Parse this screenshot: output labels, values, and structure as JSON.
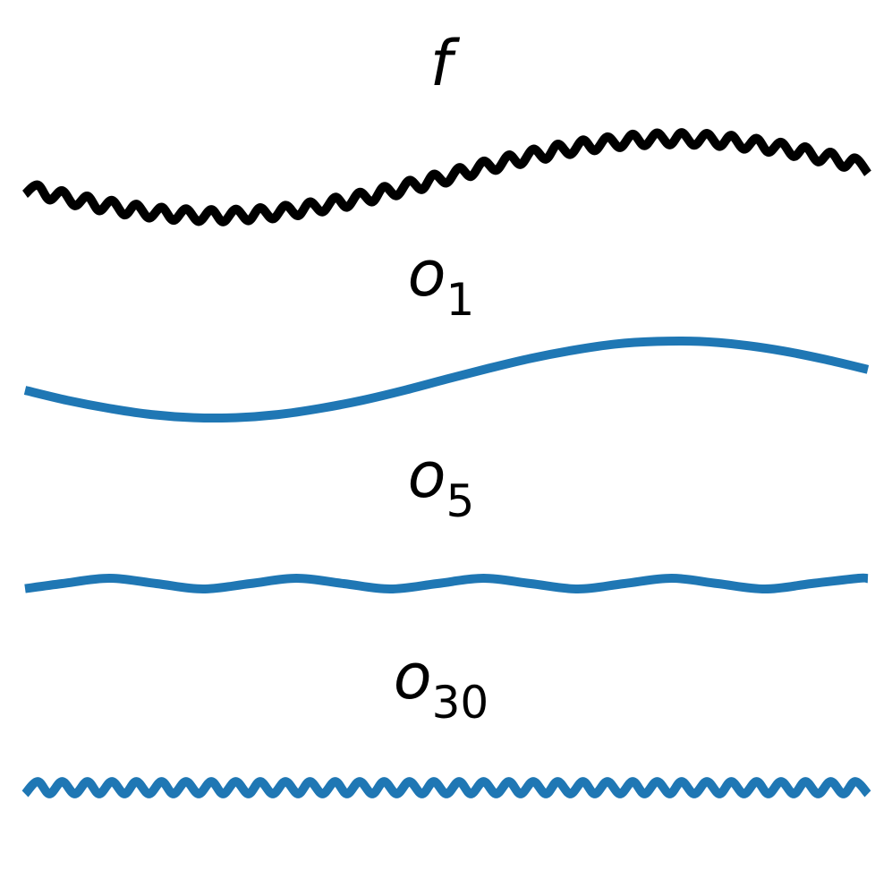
{
  "chart_data": [
    {
      "type": "line",
      "title": "f",
      "x": [
        0,
        0.015,
        0.029,
        0.044,
        0.059,
        0.074,
        0.088,
        0.103,
        0.118,
        0.132,
        0.147,
        0.162,
        0.176,
        0.191,
        0.206,
        0.221,
        0.235,
        0.25,
        0.265,
        0.279,
        0.294,
        0.309,
        0.324,
        0.338,
        0.353,
        0.368,
        0.382,
        0.397,
        0.412,
        0.426,
        0.441,
        0.456,
        0.471,
        0.485,
        0.5,
        0.515,
        0.529,
        0.544,
        0.559,
        0.574,
        0.588,
        0.603,
        0.618,
        0.632,
        0.647,
        0.662,
        0.676,
        0.691,
        0.706,
        0.721,
        0.735,
        0.75,
        0.765,
        0.779,
        0.794,
        0.809,
        0.824,
        0.838,
        0.853,
        0.868,
        0.882,
        0.897,
        0.912,
        0.926,
        0.941,
        0.956,
        0.971,
        0.985,
        1
      ],
      "series": [
        {
          "color": "#000000",
          "values": [
            -0.44,
            -0.2,
            -0.59,
            -0.35,
            -0.74,
            -0.49,
            -0.87,
            -0.6,
            -0.98,
            -0.7,
            -1.06,
            -0.78,
            -1.12,
            -0.82,
            -1.15,
            -0.84,
            -1.16,
            -0.83,
            -1.13,
            -0.79,
            -1.08,
            -0.73,
            -1.0,
            -0.64,
            -0.9,
            -0.52,
            -0.78,
            -0.39,
            -0.64,
            -0.24,
            -0.48,
            -0.08,
            -0.32,
            0.08,
            -0.15,
            0.25,
            0.02,
            0.42,
            0.18,
            0.58,
            0.33,
            0.73,
            0.47,
            0.86,
            0.59,
            0.97,
            0.69,
            1.05,
            0.77,
            1.12,
            0.82,
            1.15,
            0.84,
            1.16,
            0.83,
            1.14,
            0.8,
            1.09,
            0.73,
            1.01,
            0.65,
            0.91,
            0.54,
            0.79,
            0.4,
            0.65,
            0.26,
            0.5,
            0.1
          ]
        }
      ],
      "xlim": [
        0,
        1
      ],
      "ylim": [
        -1.5,
        1.5
      ]
    },
    {
      "type": "line",
      "title": "o",
      "subscript": "1",
      "x": [
        0,
        0.05,
        0.1,
        0.15,
        0.2,
        0.25,
        0.3,
        0.35,
        0.4,
        0.45,
        0.5,
        0.55,
        0.6,
        0.65,
        0.7,
        0.75,
        0.8,
        0.85,
        0.9,
        0.95,
        1
      ],
      "series": [
        {
          "color": "#1f77b4",
          "values": [
            -0.28,
            -0.54,
            -0.75,
            -0.91,
            -0.99,
            -0.99,
            -0.91,
            -0.75,
            -0.54,
            -0.28,
            0.01,
            0.29,
            0.55,
            0.76,
            0.92,
            0.99,
            0.99,
            0.9,
            0.74,
            0.52,
            0.26
          ]
        }
      ],
      "xlim": [
        0,
        1
      ],
      "ylim": [
        -1.5,
        1.5
      ]
    },
    {
      "type": "line",
      "title": "o",
      "subscript": "5",
      "x": [
        0,
        0.044,
        0.1,
        0.156,
        0.211,
        0.267,
        0.322,
        0.378,
        0.433,
        0.489,
        0.544,
        0.6,
        0.656,
        0.711,
        0.767,
        0.822,
        0.878,
        0.933,
        0.989,
        1
      ],
      "series": [
        {
          "color": "#1f77b4",
          "values": [
            -0.13,
            0,
            0.14,
            0,
            -0.14,
            0,
            0.14,
            0,
            -0.14,
            0,
            0.14,
            0,
            -0.14,
            0,
            0.14,
            0,
            -0.14,
            0,
            0.14,
            0.13
          ]
        }
      ],
      "xlim": [
        0,
        1
      ],
      "ylim": [
        -1.5,
        1.5
      ]
    },
    {
      "type": "line",
      "title": "o",
      "subscript": "30",
      "x": [
        0,
        0.015,
        0.029,
        0.044,
        0.059,
        0.074,
        0.088,
        0.103,
        0.118,
        0.132,
        0.147,
        0.162,
        0.176,
        0.191,
        0.206,
        0.221,
        0.235,
        0.25,
        0.265,
        0.279,
        0.294,
        0.309,
        0.324,
        0.338,
        0.353,
        0.368,
        0.382,
        0.397,
        0.412,
        0.426,
        0.441,
        0.456,
        0.471,
        0.485,
        0.5,
        0.515,
        0.529,
        0.544,
        0.559,
        0.574,
        0.588,
        0.603,
        0.618,
        0.632,
        0.647,
        0.662,
        0.676,
        0.691,
        0.706,
        0.721,
        0.735,
        0.75,
        0.765,
        0.779,
        0.794,
        0.809,
        0.824,
        0.838,
        0.853,
        0.868,
        0.882,
        0.897,
        0.912,
        0.926,
        0.941,
        0.956,
        0.971,
        0.985,
        1
      ],
      "series": [
        {
          "color": "#1f77b4",
          "values": [
            -0.16,
            0.16,
            -0.16,
            0.16,
            -0.16,
            0.16,
            -0.16,
            0.16,
            -0.16,
            0.16,
            -0.16,
            0.16,
            -0.16,
            0.16,
            -0.16,
            0.16,
            -0.16,
            0.16,
            -0.16,
            0.16,
            -0.16,
            0.16,
            -0.16,
            0.16,
            -0.16,
            0.16,
            -0.16,
            0.16,
            -0.16,
            0.16,
            -0.16,
            0.16,
            -0.16,
            0.16,
            -0.16,
            0.16,
            -0.16,
            0.16,
            -0.16,
            0.16,
            -0.16,
            0.16,
            -0.16,
            0.16,
            -0.16,
            0.16,
            -0.16,
            0.16,
            -0.16,
            0.16,
            -0.16,
            0.16,
            -0.16,
            0.16,
            -0.16,
            0.16,
            -0.16,
            0.16,
            -0.16,
            0.16,
            -0.16,
            0.16,
            -0.16,
            0.16,
            -0.16,
            0.16,
            -0.16,
            0.16,
            -0.16
          ]
        }
      ],
      "xlim": [
        0,
        1
      ],
      "ylim": [
        -1.5,
        1.5
      ]
    }
  ]
}
